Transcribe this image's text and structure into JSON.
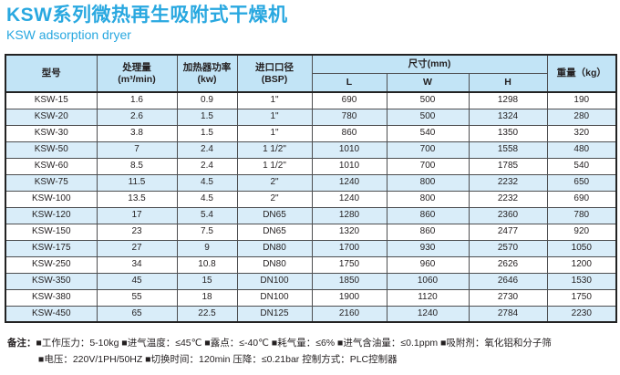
{
  "header": {
    "title_cn": "KSW系列微热再生吸附式干燥机",
    "title_en": "KSW adsorption  dryer"
  },
  "colors": {
    "accent_blue": "#29a8e0",
    "header_bg": "#c2e4f6",
    "alt_row_bg": "#d9edf9",
    "border": "#4d4e50"
  },
  "table": {
    "headers": {
      "model": "型号",
      "capacity": "处理量\n(m³/min)",
      "heater_power": "加热器功率\n(kw)",
      "inlet": "进口口径\n(BSP)",
      "dimensions": "尺寸(mm)",
      "dim_l": "L",
      "dim_w": "W",
      "dim_h": "H",
      "weight": "重量（kg）"
    },
    "rows": [
      [
        "KSW-15",
        "1.6",
        "0.9",
        "1\"",
        "690",
        "500",
        "1298",
        "190"
      ],
      [
        "KSW-20",
        "2.6",
        "1.5",
        "1\"",
        "780",
        "500",
        "1324",
        "280"
      ],
      [
        "KSW-30",
        "3.8",
        "1.5",
        "1\"",
        "860",
        "540",
        "1350",
        "320"
      ],
      [
        "KSW-50",
        "7",
        "2.4",
        "1 1/2\"",
        "1010",
        "700",
        "1558",
        "480"
      ],
      [
        "KSW-60",
        "8.5",
        "2.4",
        "1 1/2\"",
        "1010",
        "700",
        "1785",
        "540"
      ],
      [
        "KSW-75",
        "11.5",
        "4.5",
        "2\"",
        "1240",
        "800",
        "2232",
        "650"
      ],
      [
        "KSW-100",
        "13.5",
        "4.5",
        "2\"",
        "1240",
        "800",
        "2232",
        "690"
      ],
      [
        "KSW-120",
        "17",
        "5.4",
        "DN65",
        "1280",
        "860",
        "2360",
        "780"
      ],
      [
        "KSW-150",
        "23",
        "7.5",
        "DN65",
        "1320",
        "860",
        "2477",
        "920"
      ],
      [
        "KSW-175",
        "27",
        "9",
        "DN80",
        "1700",
        "930",
        "2570",
        "1050"
      ],
      [
        "KSW-250",
        "34",
        "10.8",
        "DN80",
        "1750",
        "960",
        "2626",
        "1200"
      ],
      [
        "KSW-350",
        "45",
        "15",
        "DN100",
        "1850",
        "1060",
        "2646",
        "1530"
      ],
      [
        "KSW-380",
        "55",
        "18",
        "DN100",
        "1900",
        "1120",
        "2730",
        "1750"
      ],
      [
        "KSW-450",
        "65",
        "22.5",
        "DN125",
        "2160",
        "1240",
        "2784",
        "2230"
      ]
    ]
  },
  "notes": {
    "label": "备注：",
    "line1": "■工作压力：5-10kg  ■进气温度：≤45℃  ■露点：≤-40℃  ■耗气量：≤6%  ■进气含油量：≤0.1ppm  ■吸附剂：氧化铝和分子筛",
    "line2": "■电压：220V/1PH/50HZ  ■切换时间：120min   压降：≤0.21bar   控制方式：PLC控制器"
  }
}
